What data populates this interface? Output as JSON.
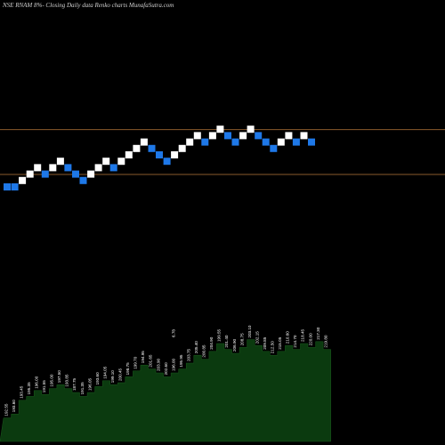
{
  "header": {
    "title": "NSE RNAM 8%-  Closing Daily data  Renko  charts MunafaSutra.com"
  },
  "colors": {
    "background": "#000000",
    "up_brick": "#ffffff",
    "down_brick": "#1e78e8",
    "level_line": "#8a5a2c",
    "volume_fill": "#0b3a0f",
    "volume_label": "#ffffff"
  },
  "chart_data": [
    {
      "type": "renko",
      "brick_size": 1,
      "x": [
        1,
        2,
        3,
        4,
        5,
        6,
        7,
        8,
        9,
        10,
        11,
        12,
        13,
        14,
        15,
        16,
        17,
        18,
        19,
        20,
        21,
        22,
        23,
        24,
        25,
        26,
        27,
        28,
        29,
        30,
        31,
        32,
        33,
        34,
        35,
        36,
        37,
        38,
        39,
        40,
        41,
        42,
        43
      ],
      "close": [
        0,
        0,
        1,
        2,
        3,
        2,
        3,
        4,
        3,
        2,
        1,
        2,
        3,
        4,
        3,
        4,
        5,
        6,
        7,
        6,
        5,
        4,
        5,
        6,
        7,
        8,
        7,
        8,
        9,
        8,
        7,
        8,
        9,
        8,
        7,
        6,
        7,
        8,
        7,
        8,
        7,
        null,
        null
      ],
      "direction": [
        "down",
        "down",
        "up",
        "up",
        "up",
        "down",
        "up",
        "up",
        "down",
        "down",
        "down",
        "up",
        "up",
        "up",
        "down",
        "up",
        "up",
        "up",
        "up",
        "down",
        "down",
        "down",
        "up",
        "up",
        "up",
        "up",
        "down",
        "up",
        "up",
        "down",
        "down",
        "up",
        "up",
        "down",
        "down",
        "down",
        "up",
        "up",
        "down",
        "up",
        "down",
        "up",
        "down"
      ],
      "levels": [
        9.5,
        2.5
      ],
      "grid": false
    },
    {
      "type": "bar",
      "x": [
        1,
        2,
        3,
        4,
        5,
        6,
        7,
        8,
        9,
        10,
        11,
        12,
        13,
        14,
        15,
        16,
        17,
        18,
        19,
        20,
        21,
        22,
        23,
        24,
        25,
        26,
        27,
        28,
        29,
        30,
        31,
        32,
        33,
        34,
        35,
        36,
        37,
        38,
        39,
        40,
        41,
        42,
        43
      ],
      "values": [
        12,
        14,
        21,
        23,
        26,
        24,
        27,
        29,
        27,
        25,
        23,
        25,
        28,
        31,
        29,
        30,
        33,
        36,
        39,
        37,
        35,
        33,
        35,
        37,
        40,
        44,
        42,
        46,
        50,
        47,
        45,
        48,
        52,
        49,
        46,
        44,
        46,
        49,
        47,
        50,
        48,
        51,
        47
      ],
      "labels": [
        "192.55",
        "193.60",
        "193.45",
        "195.35",
        "196.00",
        "191.55",
        "195.00",
        "197.50",
        "193.85",
        "187.75",
        "191.35",
        "196.05",
        "193.60",
        "194.05",
        "199.10",
        "200.45",
        "198.75",
        "199.70",
        "194.95",
        "201.65",
        "203.90",
        "202.60",
        "196.00",
        "195.95",
        "203.75",
        "205.40",
        "200.85",
        "204.90",
        "199.55",
        "201.40",
        "206.90",
        "208.75",
        "203.10",
        "202.15",
        "209.85",
        "212.50",
        "215.05",
        "210.60",
        "214.70",
        "218.45",
        "220.00",
        "217.30",
        "219.80"
      ],
      "callout": "6.78",
      "ylim": [
        0,
        60
      ]
    }
  ]
}
